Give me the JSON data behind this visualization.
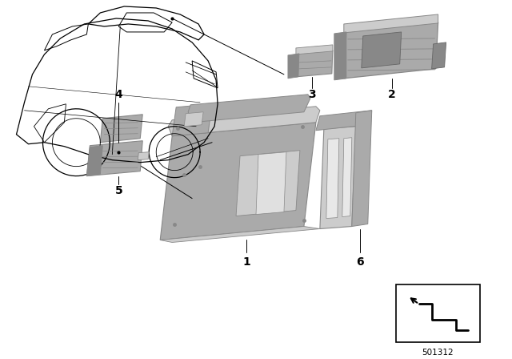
{
  "background_color": "#ffffff",
  "line_color": "#000000",
  "part_color_mid": "#aaaaaa",
  "part_color_light": "#cccccc",
  "part_color_dark": "#888888",
  "part_color_vdark": "#666666",
  "part_number": "501312",
  "figsize": [
    6.4,
    4.48
  ],
  "dpi": 100,
  "label_fontsize": 10,
  "label_fontweight": "bold"
}
